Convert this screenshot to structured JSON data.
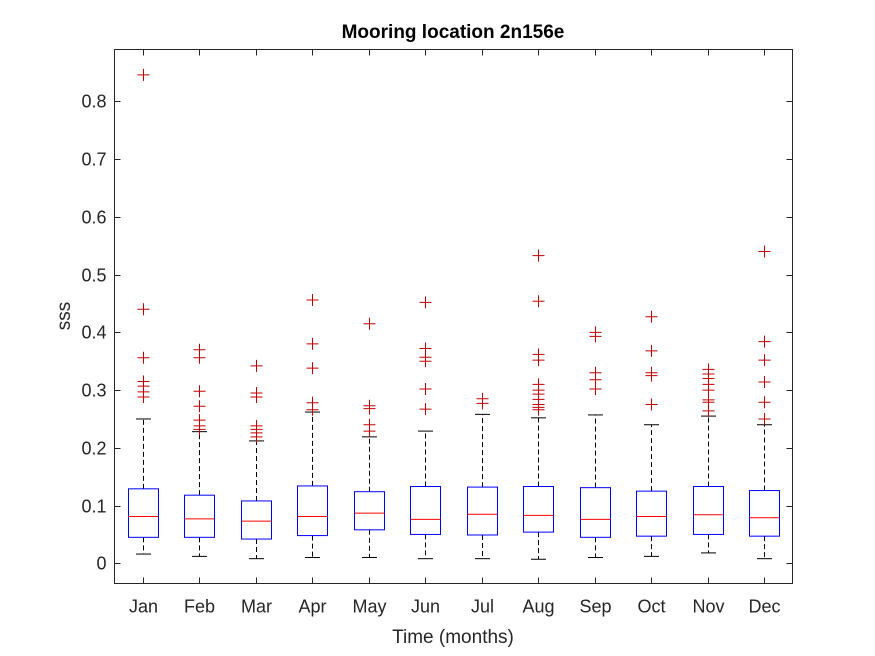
{
  "chart_data": {
    "type": "boxplot",
    "title": "Mooring location 2n156e",
    "xlabel": "Time (months)",
    "ylabel": "sss",
    "ylim": [
      -0.035,
      0.89
    ],
    "yticks": [
      "0",
      "0.1",
      "0.2",
      "0.3",
      "0.4",
      "0.5",
      "0.6",
      "0.7",
      "0.8"
    ],
    "categories": [
      "Jan",
      "Feb",
      "Mar",
      "Apr",
      "May",
      "Jun",
      "Jul",
      "Aug",
      "Sep",
      "Oct",
      "Nov",
      "Dec"
    ],
    "grid": false,
    "colors": {
      "box": "#0000ff",
      "median": "#ff0000",
      "whisker": "#000000",
      "outlier": "#c00000",
      "axis": "#262626"
    },
    "boxes": [
      {
        "month": "Jan",
        "whisker_low": 0.016,
        "q1": 0.045,
        "median": 0.081,
        "q3": 0.129,
        "whisker_high": 0.25,
        "outliers": [
          0.846,
          0.44,
          0.356,
          0.315,
          0.307,
          0.297,
          0.288
        ]
      },
      {
        "month": "Feb",
        "whisker_low": 0.012,
        "q1": 0.045,
        "median": 0.077,
        "q3": 0.118,
        "whisker_high": 0.228,
        "outliers": [
          0.37,
          0.356,
          0.298,
          0.272,
          0.248,
          0.238,
          0.232
        ]
      },
      {
        "month": "Mar",
        "whisker_low": 0.008,
        "q1": 0.042,
        "median": 0.073,
        "q3": 0.108,
        "whisker_high": 0.212,
        "outliers": [
          0.342,
          0.295,
          0.288,
          0.238,
          0.232,
          0.226,
          0.219
        ]
      },
      {
        "month": "Apr",
        "whisker_low": 0.01,
        "q1": 0.048,
        "median": 0.081,
        "q3": 0.134,
        "whisker_high": 0.262,
        "outliers": [
          0.456,
          0.38,
          0.338,
          0.278,
          0.266
        ]
      },
      {
        "month": "May",
        "whisker_low": 0.01,
        "q1": 0.058,
        "median": 0.087,
        "q3": 0.124,
        "whisker_high": 0.219,
        "outliers": [
          0.415,
          0.273,
          0.268,
          0.24,
          0.229
        ]
      },
      {
        "month": "Jun",
        "whisker_low": 0.008,
        "q1": 0.05,
        "median": 0.076,
        "q3": 0.133,
        "whisker_high": 0.229,
        "outliers": [
          0.452,
          0.372,
          0.357,
          0.35,
          0.302,
          0.267
        ]
      },
      {
        "month": "Jul",
        "whisker_low": 0.008,
        "q1": 0.049,
        "median": 0.085,
        "q3": 0.132,
        "whisker_high": 0.258,
        "outliers": [
          0.285,
          0.277
        ]
      },
      {
        "month": "Aug",
        "whisker_low": 0.007,
        "q1": 0.054,
        "median": 0.083,
        "q3": 0.133,
        "whisker_high": 0.252,
        "outliers": [
          0.533,
          0.454,
          0.362,
          0.352,
          0.31,
          0.3,
          0.293,
          0.284,
          0.275,
          0.27,
          0.266
        ]
      },
      {
        "month": "Sep",
        "whisker_low": 0.01,
        "q1": 0.045,
        "median": 0.076,
        "q3": 0.131,
        "whisker_high": 0.257,
        "outliers": [
          0.4,
          0.393,
          0.33,
          0.318,
          0.302
        ]
      },
      {
        "month": "Oct",
        "whisker_low": 0.012,
        "q1": 0.047,
        "median": 0.081,
        "q3": 0.125,
        "whisker_high": 0.24,
        "outliers": [
          0.427,
          0.368,
          0.33,
          0.325,
          0.275
        ]
      },
      {
        "month": "Nov",
        "whisker_low": 0.018,
        "q1": 0.05,
        "median": 0.084,
        "q3": 0.133,
        "whisker_high": 0.255,
        "outliers": [
          0.336,
          0.328,
          0.32,
          0.31,
          0.3,
          0.283,
          0.279,
          0.264
        ]
      },
      {
        "month": "Dec",
        "whisker_low": 0.008,
        "q1": 0.047,
        "median": 0.079,
        "q3": 0.126,
        "whisker_high": 0.24,
        "outliers": [
          0.54,
          0.384,
          0.352,
          0.314,
          0.279,
          0.25
        ]
      }
    ]
  }
}
